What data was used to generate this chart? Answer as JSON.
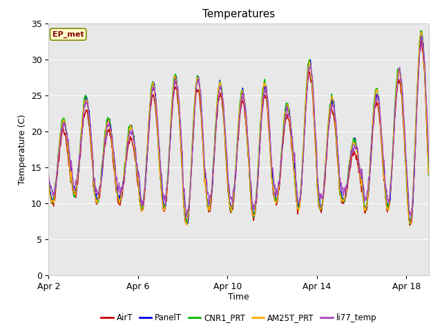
{
  "title": "Temperatures",
  "xlabel": "Time",
  "ylabel": "Temperature (C)",
  "ylim": [
    0,
    35
  ],
  "yticks": [
    0,
    5,
    10,
    15,
    20,
    25,
    30,
    35
  ],
  "xtick_labels": [
    "Apr 2",
    "Apr 6",
    "Apr 10",
    "Apr 14",
    "Apr 18"
  ],
  "xtick_positions": [
    0,
    4,
    8,
    12,
    16
  ],
  "annotation_text": "EP_met",
  "series": [
    {
      "label": "AirT",
      "color": "#cc0000"
    },
    {
      "label": "PanelT",
      "color": "#0000ee"
    },
    {
      "label": "CNR1_PRT",
      "color": "#00bb00"
    },
    {
      "label": "AM25T_PRT",
      "color": "#ffaa00"
    },
    {
      "label": "li77_temp",
      "color": "#aa44bb"
    }
  ],
  "fig_bg_color": "#ffffff",
  "plot_bg_color": "#e8e8e8",
  "grid_color": "#ffffff",
  "n_days": 17,
  "pts_per_day": 144,
  "title_fontsize": 11,
  "label_fontsize": 9,
  "tick_fontsize": 9
}
